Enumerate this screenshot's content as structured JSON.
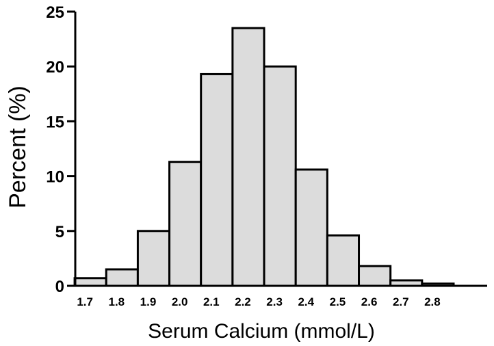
{
  "chart_data": {
    "type": "bar",
    "subtype": "histogram",
    "xlabel": "Serum Calcium (mmol/L)",
    "ylabel": "Percent  (%)",
    "ylim": [
      0,
      25
    ],
    "yticks": [
      0,
      5,
      10,
      15,
      20,
      25
    ],
    "xticks": [
      "1.7",
      "1.8",
      "1.9",
      "2.0",
      "2.1",
      "2.2",
      "2.3",
      "2.4",
      "2.5",
      "2.6",
      "2.7",
      "2.8"
    ],
    "bins": [
      {
        "start": 1.65,
        "end": 1.75,
        "value": 0.7
      },
      {
        "start": 1.75,
        "end": 1.85,
        "value": 1.5
      },
      {
        "start": 1.85,
        "end": 1.95,
        "value": 5.0
      },
      {
        "start": 1.95,
        "end": 2.05,
        "value": 11.3
      },
      {
        "start": 2.05,
        "end": 2.15,
        "value": 19.3
      },
      {
        "start": 2.15,
        "end": 2.25,
        "value": 23.5
      },
      {
        "start": 2.25,
        "end": 2.35,
        "value": 20.0
      },
      {
        "start": 2.35,
        "end": 2.45,
        "value": 10.6
      },
      {
        "start": 2.45,
        "end": 2.55,
        "value": 4.6
      },
      {
        "start": 2.55,
        "end": 2.65,
        "value": 1.8
      },
      {
        "start": 2.65,
        "end": 2.75,
        "value": 0.5
      },
      {
        "start": 2.75,
        "end": 2.85,
        "value": 0.2
      }
    ],
    "bar_color": "#dcdcdc",
    "edge_color": "#000000",
    "grid": false,
    "legend": "none"
  }
}
